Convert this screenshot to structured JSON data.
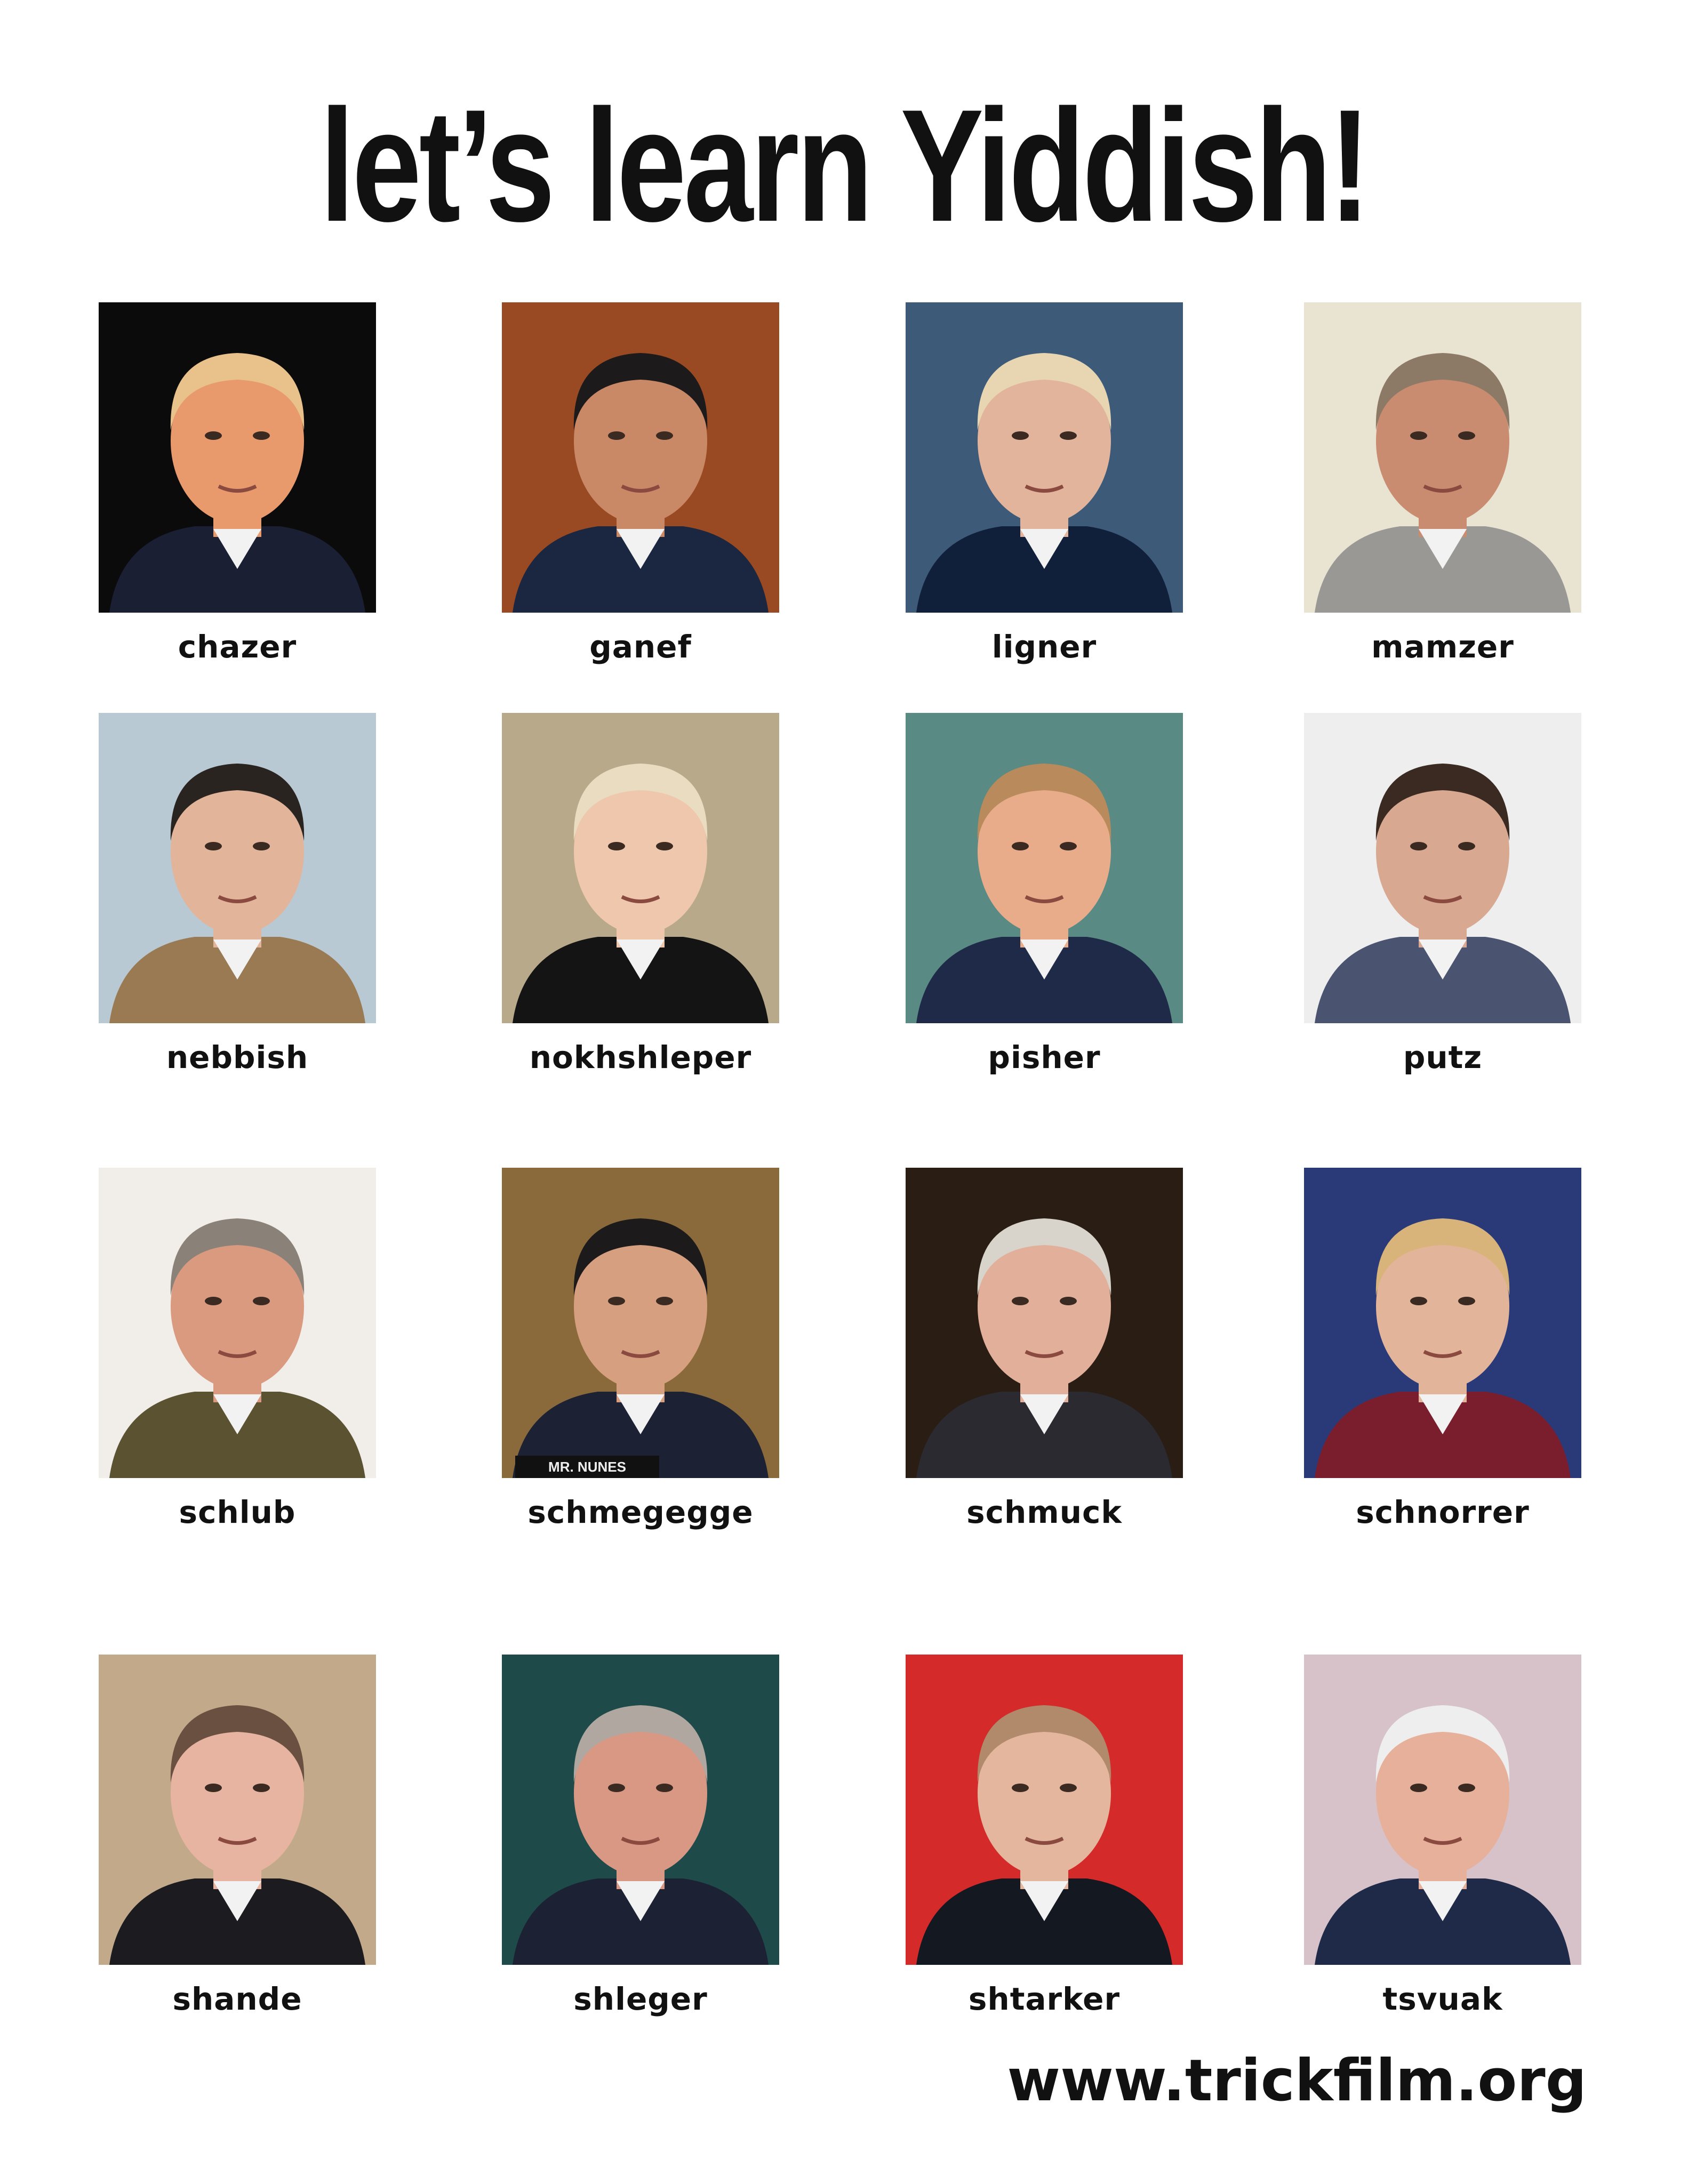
{
  "title": "let’s learn Yiddish!",
  "cards": [
    {
      "caption": "chazer",
      "bg": "#0b0b0b",
      "skin": "#e89a6c",
      "hair": "#e8c28a",
      "clothes": "#1a1f33"
    },
    {
      "caption": "ganef",
      "bg": "#9a4a22",
      "skin": "#c98866",
      "hair": "#1c1a1a",
      "clothes": "#1b2740"
    },
    {
      "caption": "ligner",
      "bg": "#3d5a78",
      "skin": "#e2b49c",
      "hair": "#e8d6b2",
      "clothes": "#10203a"
    },
    {
      "caption": "mamzer",
      "bg": "#e9e3d2",
      "skin": "#c98c70",
      "hair": "#8c7a66",
      "clothes": "#9a9894"
    },
    {
      "caption": "nebbish",
      "bg": "#b9c9d4",
      "skin": "#e2b49a",
      "hair": "#2a2420",
      "clothes": "#9a7a52"
    },
    {
      "caption": "nokhshleper",
      "bg": "#b8a98a",
      "skin": "#efc7ad",
      "hair": "#e9dcc0",
      "clothes": "#141414"
    },
    {
      "caption": "pisher",
      "bg": "#5a8a84",
      "skin": "#e8ac8a",
      "hair": "#b88a5c",
      "clothes": "#1e2a48"
    },
    {
      "caption": "putz",
      "bg": "#eeeeee",
      "skin": "#d8a890",
      "hair": "#3a2a22",
      "clothes": "#4a5470"
    },
    {
      "caption": "schlub",
      "bg": "#f1eeea",
      "skin": "#d99a80",
      "hair": "#8a8278",
      "clothes": "#5a5230"
    },
    {
      "caption": "schmegegge",
      "bg": "#8a6a3a",
      "skin": "#d6a080",
      "hair": "#1c1a1a",
      "clothes": "#1c2234",
      "plaque": "MR. NUNES"
    },
    {
      "caption": "schmuck",
      "bg": "#2a1e14",
      "skin": "#e2b09a",
      "hair": "#d8d4cc",
      "clothes": "#2a2a30"
    },
    {
      "caption": "schnorrer",
      "bg": "#2a3a78",
      "skin": "#e2b49a",
      "hair": "#d8b47a",
      "clothes": "#7a1e2e"
    },
    {
      "caption": "shande",
      "bg": "#c2a98a",
      "skin": "#e6b4a0",
      "hair": "#6a5040",
      "clothes": "#1c1c20"
    },
    {
      "caption": "shleger",
      "bg": "#1e4a4a",
      "skin": "#d89884",
      "hair": "#b0a8a0",
      "clothes": "#1c2234"
    },
    {
      "caption": "shtarker",
      "bg": "#d42a2a",
      "skin": "#e4b69e",
      "hair": "#b08a6a",
      "clothes": "#141820"
    },
    {
      "caption": "tsvuak",
      "bg": "#d6c2c8",
      "skin": "#e6b09a",
      "hair": "#eeeeee",
      "clothes": "#1e2a48"
    }
  ],
  "footer": "www.trickfilm.org"
}
